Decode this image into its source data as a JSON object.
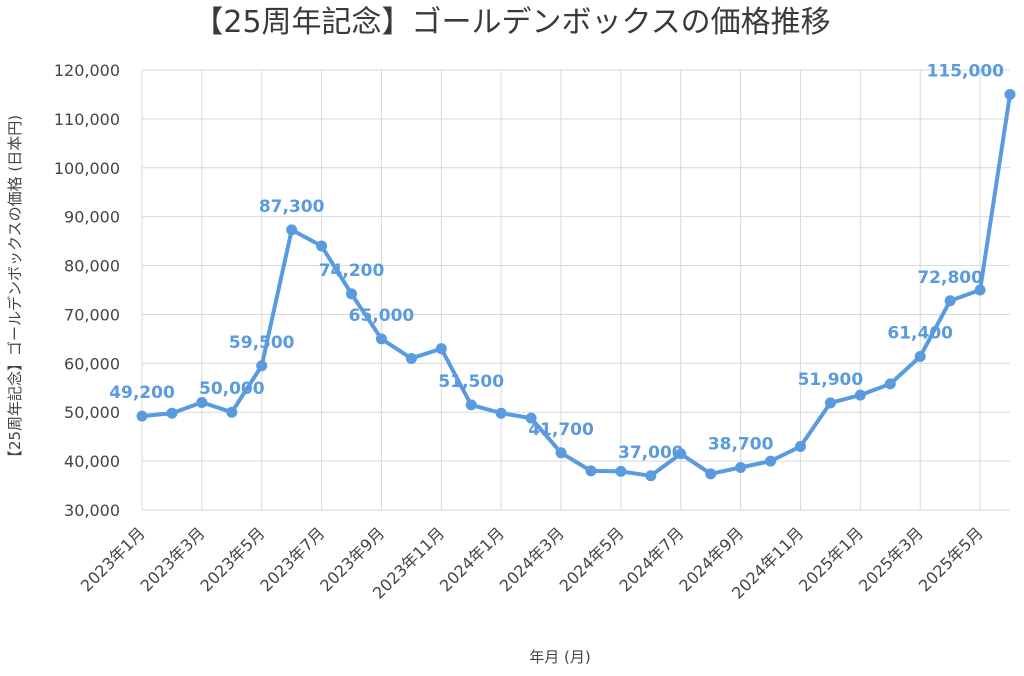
{
  "chart_data": {
    "type": "line",
    "title": "【25周年記念】ゴールデンボックスの価格推移",
    "xlabel": "年月 (月)",
    "ylabel": "【25周年記念】ゴールデンボックスの価格 (日本円)",
    "ylim": [
      30000,
      120000
    ],
    "yticks": [
      30000,
      40000,
      50000,
      60000,
      70000,
      80000,
      90000,
      100000,
      110000,
      120000
    ],
    "ytick_labels": [
      "30,000",
      "40,000",
      "50,000",
      "60,000",
      "70,000",
      "80,000",
      "90,000",
      "100,000",
      "110,000",
      "120,000"
    ],
    "grid": true,
    "x": [
      "2023年1月",
      "2023年2月",
      "2023年3月",
      "2023年4月",
      "2023年5月",
      "2023年6月",
      "2023年7月",
      "2023年8月",
      "2023年9月",
      "2023年10月",
      "2023年11月",
      "2023年12月",
      "2024年1月",
      "2024年2月",
      "2024年3月",
      "2024年4月",
      "2024年5月",
      "2024年6月",
      "2024年7月",
      "2024年8月",
      "2024年9月",
      "2024年10月",
      "2024年11月",
      "2024年12月",
      "2025年1月",
      "2025年2月",
      "2025年3月",
      "2025年4月",
      "2025年5月",
      "2025年6月"
    ],
    "xtick_labels": [
      "2023年1月",
      "2023年3月",
      "2023年5月",
      "2023年7月",
      "2023年9月",
      "2023年11月",
      "2024年1月",
      "2024年3月",
      "2024年5月",
      "2024年7月",
      "2024年9月",
      "2024年11月",
      "2025年1月",
      "2025年3月",
      "2025年5月"
    ],
    "series": [
      {
        "color": "#5a9be0",
        "values": [
          49200,
          49800,
          52000,
          50000,
          59500,
          87300,
          84000,
          74200,
          65000,
          61000,
          63000,
          51500,
          49800,
          48800,
          41700,
          38000,
          37900,
          37000,
          41500,
          37400,
          38700,
          40000,
          43000,
          51900,
          53500,
          55800,
          61400,
          72800,
          75000,
          115000
        ]
      }
    ],
    "data_labels": [
      {
        "index": 0,
        "text": "49,200"
      },
      {
        "index": 3,
        "text": "50,000"
      },
      {
        "index": 4,
        "text": "59,500"
      },
      {
        "index": 5,
        "text": "87,300"
      },
      {
        "index": 7,
        "text": "74,200"
      },
      {
        "index": 8,
        "text": "65,000"
      },
      {
        "index": 11,
        "text": "51,500"
      },
      {
        "index": 14,
        "text": "41,700"
      },
      {
        "index": 17,
        "text": "37,000"
      },
      {
        "index": 20,
        "text": "38,700"
      },
      {
        "index": 23,
        "text": "51,900"
      },
      {
        "index": 26,
        "text": "61,400"
      },
      {
        "index": 27,
        "text": "72,800"
      },
      {
        "index": 29,
        "text": "115,000"
      }
    ]
  }
}
